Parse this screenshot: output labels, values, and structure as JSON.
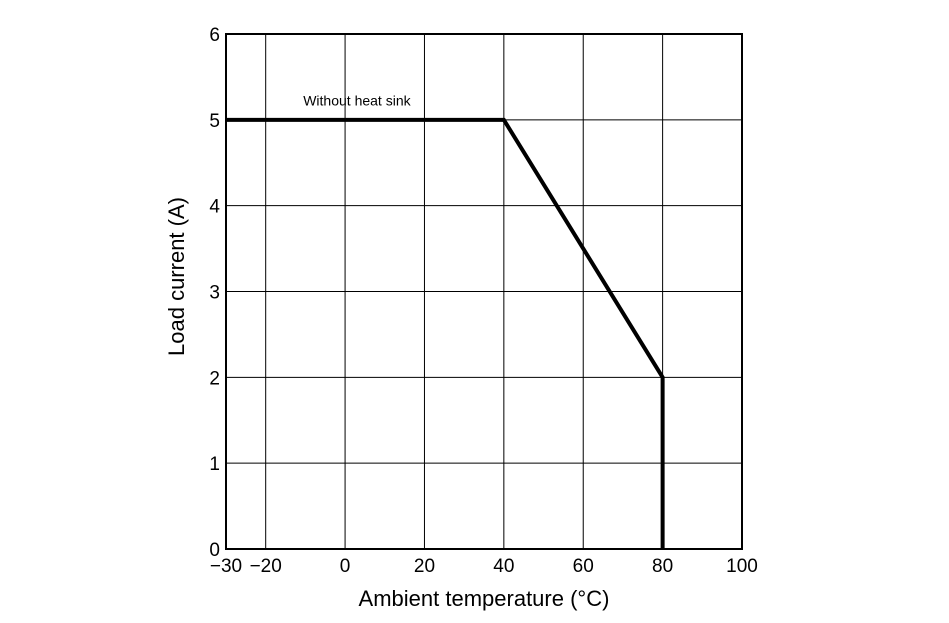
{
  "chart_data": {
    "type": "line",
    "xlabel": "Ambient temperature (°C)",
    "ylabel": "Load current (A)",
    "xlim": [
      -30,
      100
    ],
    "ylim": [
      0,
      6
    ],
    "x_ticks": [
      -30,
      -20,
      0,
      20,
      40,
      60,
      80,
      100
    ],
    "x_tick_labels": [
      "−30",
      "−20",
      "0",
      "20",
      "40",
      "60",
      "80",
      "100"
    ],
    "x_grid": [
      -20,
      0,
      20,
      40,
      60,
      80
    ],
    "y_ticks": [
      0,
      1,
      2,
      3,
      4,
      5,
      6
    ],
    "y_tick_labels": [
      "0",
      "1",
      "2",
      "3",
      "4",
      "5",
      "6"
    ],
    "grid": true,
    "series": [
      {
        "x": [
          -30,
          40,
          80,
          80
        ],
        "y": [
          5,
          5,
          2,
          0
        ]
      }
    ],
    "annotations": [
      {
        "text": "Without heat sink",
        "x": 5,
        "y": 5.2
      }
    ]
  }
}
